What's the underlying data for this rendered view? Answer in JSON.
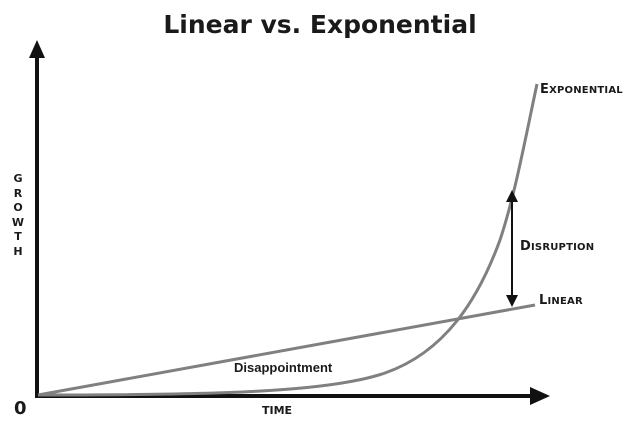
{
  "title": "Linear vs. Exponential",
  "axes": {
    "y_label": "GROWTH",
    "x_label": "TIME",
    "origin_label": "0"
  },
  "curves": {
    "exponential_label": "Exponential",
    "linear_label": "Linear"
  },
  "annotations": {
    "gap_label": "Disruption",
    "early_label": "Disappointment"
  },
  "colors": {
    "axis": "#111111",
    "curve": "#808080",
    "text": "#1a1a1a"
  }
}
